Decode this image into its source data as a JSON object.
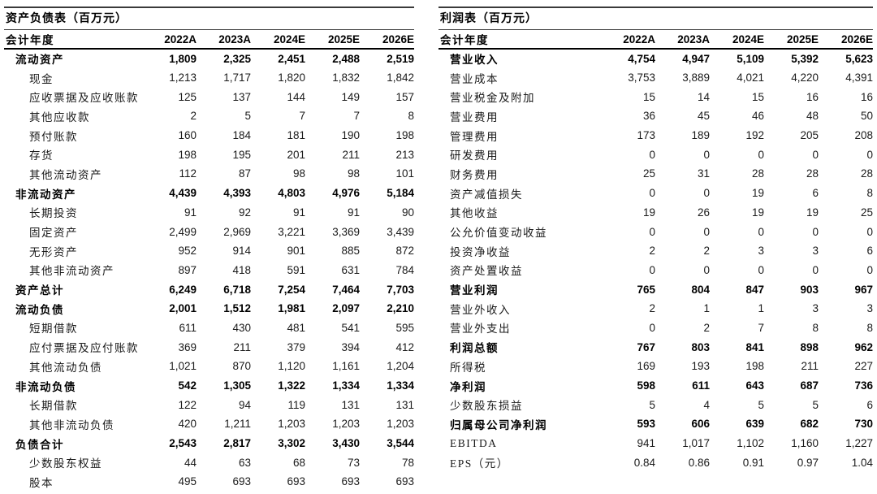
{
  "unit_note": "百万元",
  "tables": [
    {
      "id": "balance-sheet",
      "title": "资产负债表（百万元）",
      "header": [
        "会计年度",
        "2022A",
        "2023A",
        "2024E",
        "2025E",
        "2026E"
      ],
      "rows": [
        {
          "label": "流动资产",
          "values": [
            "1,809",
            "2,325",
            "2,451",
            "2,488",
            "2,519"
          ],
          "bold": true,
          "indent": 1
        },
        {
          "label": "现金",
          "values": [
            "1,213",
            "1,717",
            "1,820",
            "1,832",
            "1,842"
          ],
          "bold": false,
          "indent": 2
        },
        {
          "label": "应收票据及应收账款",
          "values": [
            "125",
            "137",
            "144",
            "149",
            "157"
          ],
          "bold": false,
          "indent": 2
        },
        {
          "label": "其他应收款",
          "values": [
            "2",
            "5",
            "7",
            "7",
            "8"
          ],
          "bold": false,
          "indent": 2
        },
        {
          "label": "预付账款",
          "values": [
            "160",
            "184",
            "181",
            "190",
            "198"
          ],
          "bold": false,
          "indent": 2
        },
        {
          "label": "存货",
          "values": [
            "198",
            "195",
            "201",
            "211",
            "213"
          ],
          "bold": false,
          "indent": 2
        },
        {
          "label": "其他流动资产",
          "values": [
            "112",
            "87",
            "98",
            "98",
            "101"
          ],
          "bold": false,
          "indent": 2
        },
        {
          "label": "非流动资产",
          "values": [
            "4,439",
            "4,393",
            "4,803",
            "4,976",
            "5,184"
          ],
          "bold": true,
          "indent": 1
        },
        {
          "label": "长期投资",
          "values": [
            "91",
            "92",
            "91",
            "91",
            "90"
          ],
          "bold": false,
          "indent": 2
        },
        {
          "label": "固定资产",
          "values": [
            "2,499",
            "2,969",
            "3,221",
            "3,369",
            "3,439"
          ],
          "bold": false,
          "indent": 2
        },
        {
          "label": "无形资产",
          "values": [
            "952",
            "914",
            "901",
            "885",
            "872"
          ],
          "bold": false,
          "indent": 2
        },
        {
          "label": "其他非流动资产",
          "values": [
            "897",
            "418",
            "591",
            "631",
            "784"
          ],
          "bold": false,
          "indent": 2
        },
        {
          "label": "资产总计",
          "values": [
            "6,249",
            "6,718",
            "7,254",
            "7,464",
            "7,703"
          ],
          "bold": true,
          "indent": 1
        },
        {
          "label": "流动负债",
          "values": [
            "2,001",
            "1,512",
            "1,981",
            "2,097",
            "2,210"
          ],
          "bold": true,
          "indent": 1
        },
        {
          "label": "短期借款",
          "values": [
            "611",
            "430",
            "481",
            "541",
            "595"
          ],
          "bold": false,
          "indent": 2
        },
        {
          "label": "应付票据及应付账款",
          "values": [
            "369",
            "211",
            "379",
            "394",
            "412"
          ],
          "bold": false,
          "indent": 2
        },
        {
          "label": "其他流动负债",
          "values": [
            "1,021",
            "870",
            "1,120",
            "1,161",
            "1,204"
          ],
          "bold": false,
          "indent": 2
        },
        {
          "label": "非流动负债",
          "values": [
            "542",
            "1,305",
            "1,322",
            "1,334",
            "1,334"
          ],
          "bold": true,
          "indent": 1
        },
        {
          "label": "长期借款",
          "values": [
            "122",
            "94",
            "119",
            "131",
            "131"
          ],
          "bold": false,
          "indent": 2
        },
        {
          "label": "其他非流动负债",
          "values": [
            "420",
            "1,211",
            "1,203",
            "1,203",
            "1,203"
          ],
          "bold": false,
          "indent": 2
        },
        {
          "label": "负债合计",
          "values": [
            "2,543",
            "2,817",
            "3,302",
            "3,430",
            "3,544"
          ],
          "bold": true,
          "indent": 1
        },
        {
          "label": "少数股东权益",
          "values": [
            "44",
            "63",
            "68",
            "73",
            "78"
          ],
          "bold": false,
          "indent": 2
        },
        {
          "label": "股本",
          "values": [
            "495",
            "693",
            "693",
            "693",
            "693"
          ],
          "bold": false,
          "indent": 2
        }
      ]
    },
    {
      "id": "income-statement",
      "title": "利润表（百万元）",
      "header": [
        "会计年度",
        "2022A",
        "2023A",
        "2024E",
        "2025E",
        "2026E"
      ],
      "rows": [
        {
          "label": "营业收入",
          "values": [
            "4,754",
            "4,947",
            "5,109",
            "5,392",
            "5,623"
          ],
          "bold": true,
          "indent": 1
        },
        {
          "label": "营业成本",
          "values": [
            "3,753",
            "3,889",
            "4,021",
            "4,220",
            "4,391"
          ],
          "bold": false,
          "indent": 1
        },
        {
          "label": "营业税金及附加",
          "values": [
            "15",
            "14",
            "15",
            "16",
            "16"
          ],
          "bold": false,
          "indent": 1
        },
        {
          "label": "营业费用",
          "values": [
            "36",
            "45",
            "46",
            "48",
            "50"
          ],
          "bold": false,
          "indent": 1
        },
        {
          "label": "管理费用",
          "values": [
            "173",
            "189",
            "192",
            "205",
            "208"
          ],
          "bold": false,
          "indent": 1
        },
        {
          "label": "研发费用",
          "values": [
            "0",
            "0",
            "0",
            "0",
            "0"
          ],
          "bold": false,
          "indent": 1
        },
        {
          "label": "财务费用",
          "values": [
            "25",
            "31",
            "28",
            "28",
            "28"
          ],
          "bold": false,
          "indent": 1
        },
        {
          "label": "资产减值损失",
          "values": [
            "0",
            "0",
            "19",
            "6",
            "8"
          ],
          "bold": false,
          "indent": 1
        },
        {
          "label": "其他收益",
          "values": [
            "19",
            "26",
            "19",
            "19",
            "25"
          ],
          "bold": false,
          "indent": 1
        },
        {
          "label": "公允价值变动收益",
          "values": [
            "0",
            "0",
            "0",
            "0",
            "0"
          ],
          "bold": false,
          "indent": 1
        },
        {
          "label": "投资净收益",
          "values": [
            "2",
            "2",
            "3",
            "3",
            "6"
          ],
          "bold": false,
          "indent": 1
        },
        {
          "label": "资产处置收益",
          "values": [
            "0",
            "0",
            "0",
            "0",
            "0"
          ],
          "bold": false,
          "indent": 1
        },
        {
          "label": "营业利润",
          "values": [
            "765",
            "804",
            "847",
            "903",
            "967"
          ],
          "bold": true,
          "indent": 1
        },
        {
          "label": "营业外收入",
          "values": [
            "2",
            "1",
            "1",
            "3",
            "3"
          ],
          "bold": false,
          "indent": 1
        },
        {
          "label": "营业外支出",
          "values": [
            "0",
            "2",
            "7",
            "8",
            "8"
          ],
          "bold": false,
          "indent": 1
        },
        {
          "label": "利润总额",
          "values": [
            "767",
            "803",
            "841",
            "898",
            "962"
          ],
          "bold": true,
          "indent": 1
        },
        {
          "label": "所得税",
          "values": [
            "169",
            "193",
            "198",
            "211",
            "227"
          ],
          "bold": false,
          "indent": 1
        },
        {
          "label": "净利润",
          "values": [
            "598",
            "611",
            "643",
            "687",
            "736"
          ],
          "bold": true,
          "indent": 1
        },
        {
          "label": "少数股东损益",
          "values": [
            "5",
            "4",
            "5",
            "5",
            "6"
          ],
          "bold": false,
          "indent": 1
        },
        {
          "label": "归属母公司净利润",
          "values": [
            "593",
            "606",
            "639",
            "682",
            "730"
          ],
          "bold": true,
          "indent": 1
        },
        {
          "label": "EBITDA",
          "values": [
            "941",
            "1,017",
            "1,102",
            "1,160",
            "1,227"
          ],
          "bold": false,
          "indent": 1
        },
        {
          "label": "EPS（元）",
          "values": [
            "0.84",
            "0.86",
            "0.91",
            "0.97",
            "1.04"
          ],
          "bold": false,
          "indent": 1
        }
      ]
    }
  ]
}
